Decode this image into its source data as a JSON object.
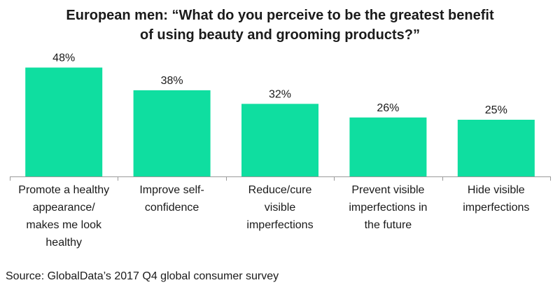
{
  "title_lines": [
    "European men: “What do you perceive to be the greatest benefit",
    "of using beauty and grooming products?”"
  ],
  "source": "Source: GlobalData’s 2017 Q4 global consumer survey",
  "colors": {
    "bar": "#0fdea0",
    "axis": "#9a9a9a",
    "text": "#1a1a1a"
  },
  "chart_data": {
    "type": "bar",
    "categories": [
      [
        "Promote a healthy",
        "appearance/",
        "makes me look",
        "healthy"
      ],
      [
        "Improve self-",
        "confidence"
      ],
      [
        "Reduce/cure",
        "visible",
        "imperfections"
      ],
      [
        "Prevent visible",
        "imperfections in",
        "the future"
      ],
      [
        "Hide visible",
        "imperfections"
      ]
    ],
    "values": [
      48,
      38,
      32,
      26,
      25
    ],
    "value_labels": [
      "48%",
      "38%",
      "32%",
      "26%",
      "25%"
    ],
    "ylim": [
      0,
      50
    ],
    "grid": false,
    "legend": "none"
  }
}
